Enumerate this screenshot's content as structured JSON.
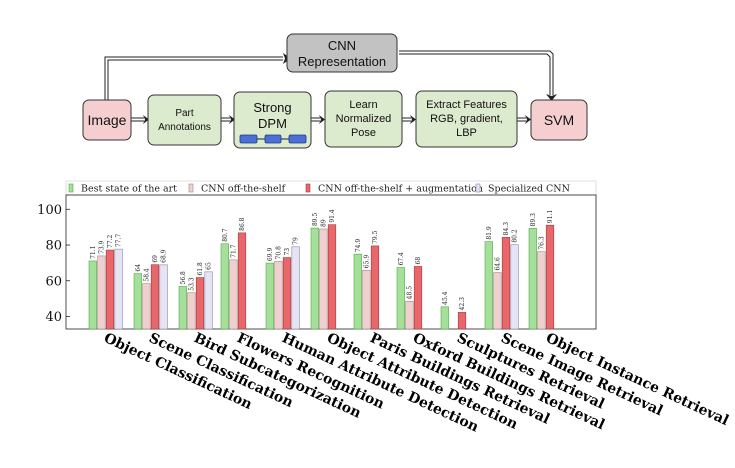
{
  "pipeline": {
    "cnn_box": [
      "CNN",
      "Representation"
    ],
    "image_box": [
      "Image"
    ],
    "part_box": [
      "Part",
      "Annotations"
    ],
    "dpm_box": [
      "Strong",
      "DPM"
    ],
    "pose_box": [
      "Learn",
      "Normalized",
      "Pose"
    ],
    "features_box": [
      "Extract Features",
      "RGB, gradient,",
      "LBP"
    ],
    "svm_box": [
      "SVM"
    ],
    "colors": {
      "pink_fill": "#f5cfd0",
      "green_fill": "#dceacd",
      "gray_fill": "#c2c2c2",
      "dpm_blue": "#4b6fd6"
    }
  },
  "chart_data": {
    "type": "bar",
    "categories": [
      "Object Classification",
      "Scene Classification",
      "Bird Subcategorization",
      "Flowers Recognition",
      "Human Attribute Detection",
      "Object Attribute Detection",
      "Paris Buildings Retrieval",
      "Oxford Buildings Retrieval",
      "Sculptures Retrieval",
      "Scene Image Retrieval",
      "Object Instance Retrieval"
    ],
    "series": [
      {
        "name": "Best state of the art",
        "color": "#a5e09a",
        "edge": "#55a84a",
        "values": [
          71.1,
          64,
          56.8,
          80.7,
          69.9,
          89.5,
          74.9,
          67.4,
          45.4,
          81.9,
          89.3
        ],
        "labels": [
          "71.1",
          "64",
          "56.8",
          "80.7",
          "69.9",
          "89.5",
          "74.9",
          "67.4",
          "45.4",
          "81.9",
          "89.3"
        ]
      },
      {
        "name": "CNN off-the-shelf",
        "color": "#f0cfcf",
        "edge": "#a08888",
        "values": [
          73.9,
          58.4,
          53.3,
          71.7,
          70.8,
          89,
          65.9,
          48.5,
          null,
          64.6,
          76.3
        ],
        "labels": [
          "73.9",
          "58.4",
          "53.3",
          "71.7",
          "70.8",
          "89",
          "65.9",
          "48.5",
          "",
          "64.6",
          "76.3"
        ]
      },
      {
        "name": "CNN off-the-shelf + augmentation",
        "color": "#e8676b",
        "edge": "#a83a3e",
        "values": [
          77.2,
          69,
          61.8,
          86.8,
          73,
          91.4,
          79.5,
          68,
          42.3,
          84.3,
          91.1
        ],
        "labels": [
          "77.2",
          "69",
          "61.8",
          "86.8",
          "73",
          "91.4",
          "79.5",
          "68",
          "42.3",
          "84.3",
          "91.1"
        ]
      },
      {
        "name": "Specialized CNN",
        "color": "#e4e4f4",
        "edge": "#8888aa",
        "values": [
          77.7,
          68.9,
          65,
          null,
          79,
          null,
          null,
          null,
          null,
          80.2,
          null
        ],
        "labels": [
          "77.7",
          "68.9",
          "65",
          "",
          "79",
          "",
          "",
          "",
          "",
          "80.2",
          ""
        ]
      }
    ],
    "yticks": [
      40,
      60,
      80,
      100
    ],
    "ylim": [
      33,
      108
    ],
    "grid": false,
    "legend_position": "top"
  }
}
